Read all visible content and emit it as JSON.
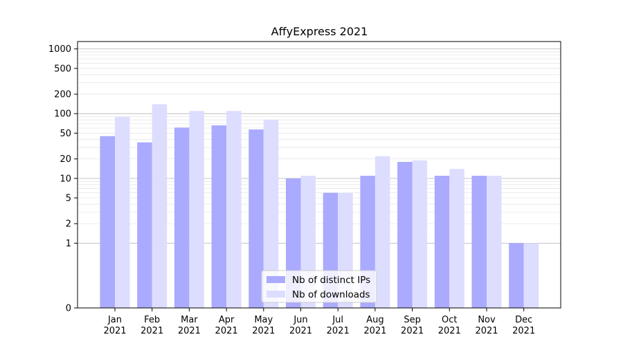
{
  "chart_data": {
    "type": "bar",
    "title": "AffyExpress 2021",
    "xlabel": "",
    "ylabel": "",
    "yscale": "symlog",
    "ylim": [
      0,
      1300
    ],
    "yticks": [
      0,
      1,
      2,
      5,
      10,
      20,
      50,
      100,
      200,
      500,
      1000
    ],
    "ytick_labels": [
      "0",
      "1",
      "2",
      "5",
      "10",
      "20",
      "50",
      "100",
      "200",
      "500",
      "1000"
    ],
    "categories": [
      "Jan",
      "Feb",
      "Mar",
      "Apr",
      "May",
      "Jun",
      "Jul",
      "Aug",
      "Sep",
      "Oct",
      "Nov",
      "Dec"
    ],
    "category_years": [
      "2021",
      "2021",
      "2021",
      "2021",
      "2021",
      "2021",
      "2021",
      "2021",
      "2021",
      "2021",
      "2021",
      "2021"
    ],
    "grid": true,
    "legend_position": "lower-center",
    "series": [
      {
        "name": "Nb of distinct IPs",
        "color": "#aaaaff",
        "values": [
          45,
          36,
          61,
          66,
          57,
          10,
          6,
          11,
          18,
          11,
          11,
          1
        ]
      },
      {
        "name": "Nb of downloads",
        "color": "#ddddff",
        "values": [
          89,
          140,
          110,
          110,
          81,
          11,
          6,
          22,
          19,
          14,
          11,
          1
        ]
      }
    ]
  }
}
